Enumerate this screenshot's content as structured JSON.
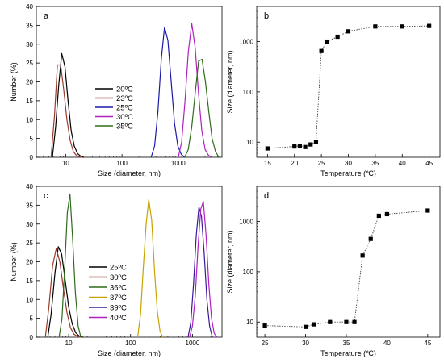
{
  "chart_data": [
    {
      "panel": "a",
      "type": "line",
      "xscale": "log",
      "xlabel": "Size (diameter, nm)",
      "ylabel": "Number (%)",
      "xlim": [
        3,
        6000
      ],
      "ylim": [
        0,
        40
      ],
      "xticks": [
        10,
        100,
        1000
      ],
      "xtick_labels": [
        "10",
        "100",
        "1000"
      ],
      "yticks": [
        0,
        5,
        10,
        15,
        20,
        25,
        30,
        35,
        40
      ],
      "legend_position": "center-left",
      "series": [
        {
          "name": "20ºC",
          "color": "#000000",
          "x": [
            5.8,
            6.6,
            7.5,
            8.5,
            9.7,
            11,
            12.5,
            14.2,
            16.2,
            18.4,
            21
          ],
          "y": [
            0,
            8,
            19,
            27.5,
            24,
            15,
            7,
            3,
            1,
            0.3,
            0
          ]
        },
        {
          "name": "23ºC",
          "color": "#9b3a2a",
          "x": [
            5.5,
            6.3,
            7.1,
            8.1,
            9.2,
            10.5,
            12,
            13.6,
            15.5,
            17.6,
            20
          ],
          "y": [
            0,
            11,
            24.5,
            24.5,
            18,
            10,
            4.5,
            1.6,
            0.5,
            0.1,
            0
          ]
        },
        {
          "name": "25ºC",
          "color": "#1a1aa8",
          "x": [
            330,
            380,
            435,
            500,
            570,
            655,
            750,
            860,
            985,
            1130,
            1300
          ],
          "y": [
            0,
            3,
            12,
            26,
            34.5,
            31,
            20,
            9,
            3,
            0.8,
            0
          ]
        },
        {
          "name": "30ºC",
          "color": "#b020c0",
          "x": [
            1000,
            1150,
            1320,
            1510,
            1740,
            2000,
            2290,
            2630,
            3020,
            3470,
            3980
          ],
          "y": [
            0,
            4,
            15,
            28,
            35.5,
            29,
            17,
            7,
            2,
            0.5,
            0
          ]
        },
        {
          "name": "35ºC",
          "color": "#2e6b1a",
          "x": [
            1300,
            1500,
            1740,
            2000,
            2300,
            2650,
            3050,
            3500,
            4000,
            4600,
            5300
          ],
          "y": [
            0,
            2,
            8,
            17,
            25.5,
            26,
            20,
            12,
            5,
            1.5,
            0
          ]
        }
      ]
    },
    {
      "panel": "b",
      "type": "line",
      "yscale": "log",
      "xlabel": "Temperature (ºC)",
      "ylabel": "Size (diameter, nm)",
      "xlim": [
        13,
        47
      ],
      "ylim": [
        5,
        5000
      ],
      "xticks": [
        15,
        20,
        25,
        30,
        35,
        40,
        45
      ],
      "yticks": [
        10,
        100,
        1000
      ],
      "marker": "square",
      "line_style": "dotted",
      "x": [
        15,
        20,
        21,
        22,
        23,
        24,
        25,
        26,
        28,
        30,
        35,
        40,
        45
      ],
      "y": [
        7.5,
        8.2,
        8.5,
        8,
        9,
        10,
        650,
        1000,
        1250,
        1600,
        2000,
        2000,
        2050
      ]
    },
    {
      "panel": "c",
      "type": "line",
      "xscale": "log",
      "xlabel": "Size (diameter, nm)",
      "ylabel": "Number (%)",
      "xlim": [
        3,
        3000
      ],
      "ylim": [
        0,
        40
      ],
      "xticks": [
        10,
        100,
        1000
      ],
      "xtick_labels": [
        "10",
        "100",
        "1000"
      ],
      "yticks": [
        0,
        5,
        10,
        15,
        20,
        25,
        30,
        35,
        40
      ],
      "legend_position": "bottom-left",
      "series": [
        {
          "name": "25ºC",
          "color": "#000000",
          "x": [
            4.6,
            5.2,
            6,
            6.8,
            7.7,
            8.8,
            10,
            11.4,
            13,
            14.8,
            17
          ],
          "y": [
            0,
            6,
            17,
            24,
            22,
            15,
            8,
            3.5,
            1.2,
            0.3,
            0
          ]
        },
        {
          "name": "30ºC",
          "color": "#9b3a2a",
          "x": [
            4.2,
            4.8,
            5.5,
            6.3,
            7.2,
            8.2,
            9.4,
            10.7,
            12.2,
            14,
            16
          ],
          "y": [
            0,
            8,
            19,
            23.5,
            20,
            13,
            6.5,
            2.5,
            0.8,
            0.2,
            0
          ]
        },
        {
          "name": "36ºC",
          "color": "#2e6b1a",
          "x": [
            7,
            7.8,
            8.6,
            9.5,
            10.5,
            11.6,
            12.8,
            14.2,
            15.7
          ],
          "y": [
            0,
            5,
            18,
            33,
            38,
            26,
            12,
            3,
            0
          ]
        },
        {
          "name": "37ºC",
          "color": "#c9a200",
          "x": [
            130,
            145,
            160,
            178,
            197,
            219,
            243,
            270,
            300,
            333
          ],
          "y": [
            0,
            6,
            18,
            30,
            36.5,
            31,
            18,
            7,
            1.5,
            0
          ]
        },
        {
          "name": "39ºC",
          "color": "#3a1a9a",
          "x": [
            850,
            940,
            1040,
            1150,
            1270,
            1400,
            1550,
            1710,
            1890,
            2090
          ],
          "y": [
            0,
            4,
            14,
            27,
            34.5,
            32,
            22,
            10,
            3,
            0
          ]
        },
        {
          "name": "40ºC",
          "color": "#b020c0",
          "x": [
            900,
            1000,
            1110,
            1230,
            1360,
            1500,
            1660,
            1840,
            2030,
            2250,
            2500
          ],
          "y": [
            0,
            3,
            11,
            24,
            34,
            36,
            27,
            14,
            5,
            1,
            0
          ]
        }
      ]
    },
    {
      "panel": "d",
      "type": "line",
      "yscale": "log",
      "xlabel": "Temperature (ºC)",
      "ylabel": "Size (diameter, nm)",
      "xlim": [
        24,
        46.5
      ],
      "ylim": [
        5,
        5000
      ],
      "xticks": [
        25,
        30,
        35,
        40,
        45
      ],
      "yticks": [
        10,
        100,
        1000
      ],
      "marker": "square",
      "line_style": "dotted",
      "x": [
        25,
        30,
        31,
        33,
        35,
        36,
        37,
        38,
        39,
        40,
        45
      ],
      "y": [
        8.5,
        8,
        9,
        10,
        10,
        10,
        210,
        450,
        1300,
        1400,
        1650
      ]
    }
  ]
}
